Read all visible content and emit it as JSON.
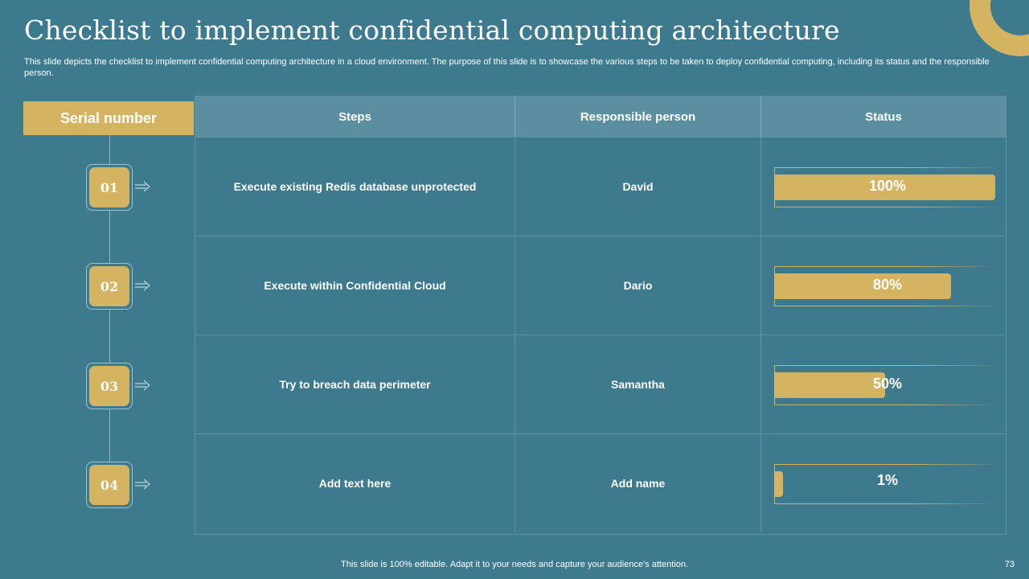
{
  "title": "Checklist to implement confidential computing architecture",
  "subtitle": "This slide depicts the checklist to implement confidential computing architecture in a cloud environment. The purpose of this slide is to showcase the various steps to be taken to  deploy confidential computing, including its status and the responsible person.",
  "serial_header": "Serial number",
  "columns": [
    "Steps",
    "Responsible person",
    "Status"
  ],
  "rows": [
    {
      "serial": "01",
      "step": "Execute existing Redis database unprotected",
      "person": "David",
      "status": "100%",
      "progress": 1.0
    },
    {
      "serial": "02",
      "step": "Execute within Confidential Cloud",
      "person": "Dario",
      "status": "80%",
      "progress": 0.8
    },
    {
      "serial": "03",
      "step": "Try to breach data perimeter",
      "person": "Samantha",
      "status": "50%",
      "progress": 0.5
    },
    {
      "serial": "04",
      "step": "Add  text here",
      "person": "Add  name",
      "status": "1%",
      "progress": 0.01
    }
  ],
  "footer": "This slide is 100% editable. Adapt it to your needs and capture your audience's attention.",
  "page_number": "73",
  "colors": {
    "background": "#3d7a8e",
    "accent": "#d4b461",
    "header": "#5a8fa0"
  },
  "icons": {
    "serial_arrow": "arrow-right-icon",
    "corner": "ring-arc-decoration"
  }
}
